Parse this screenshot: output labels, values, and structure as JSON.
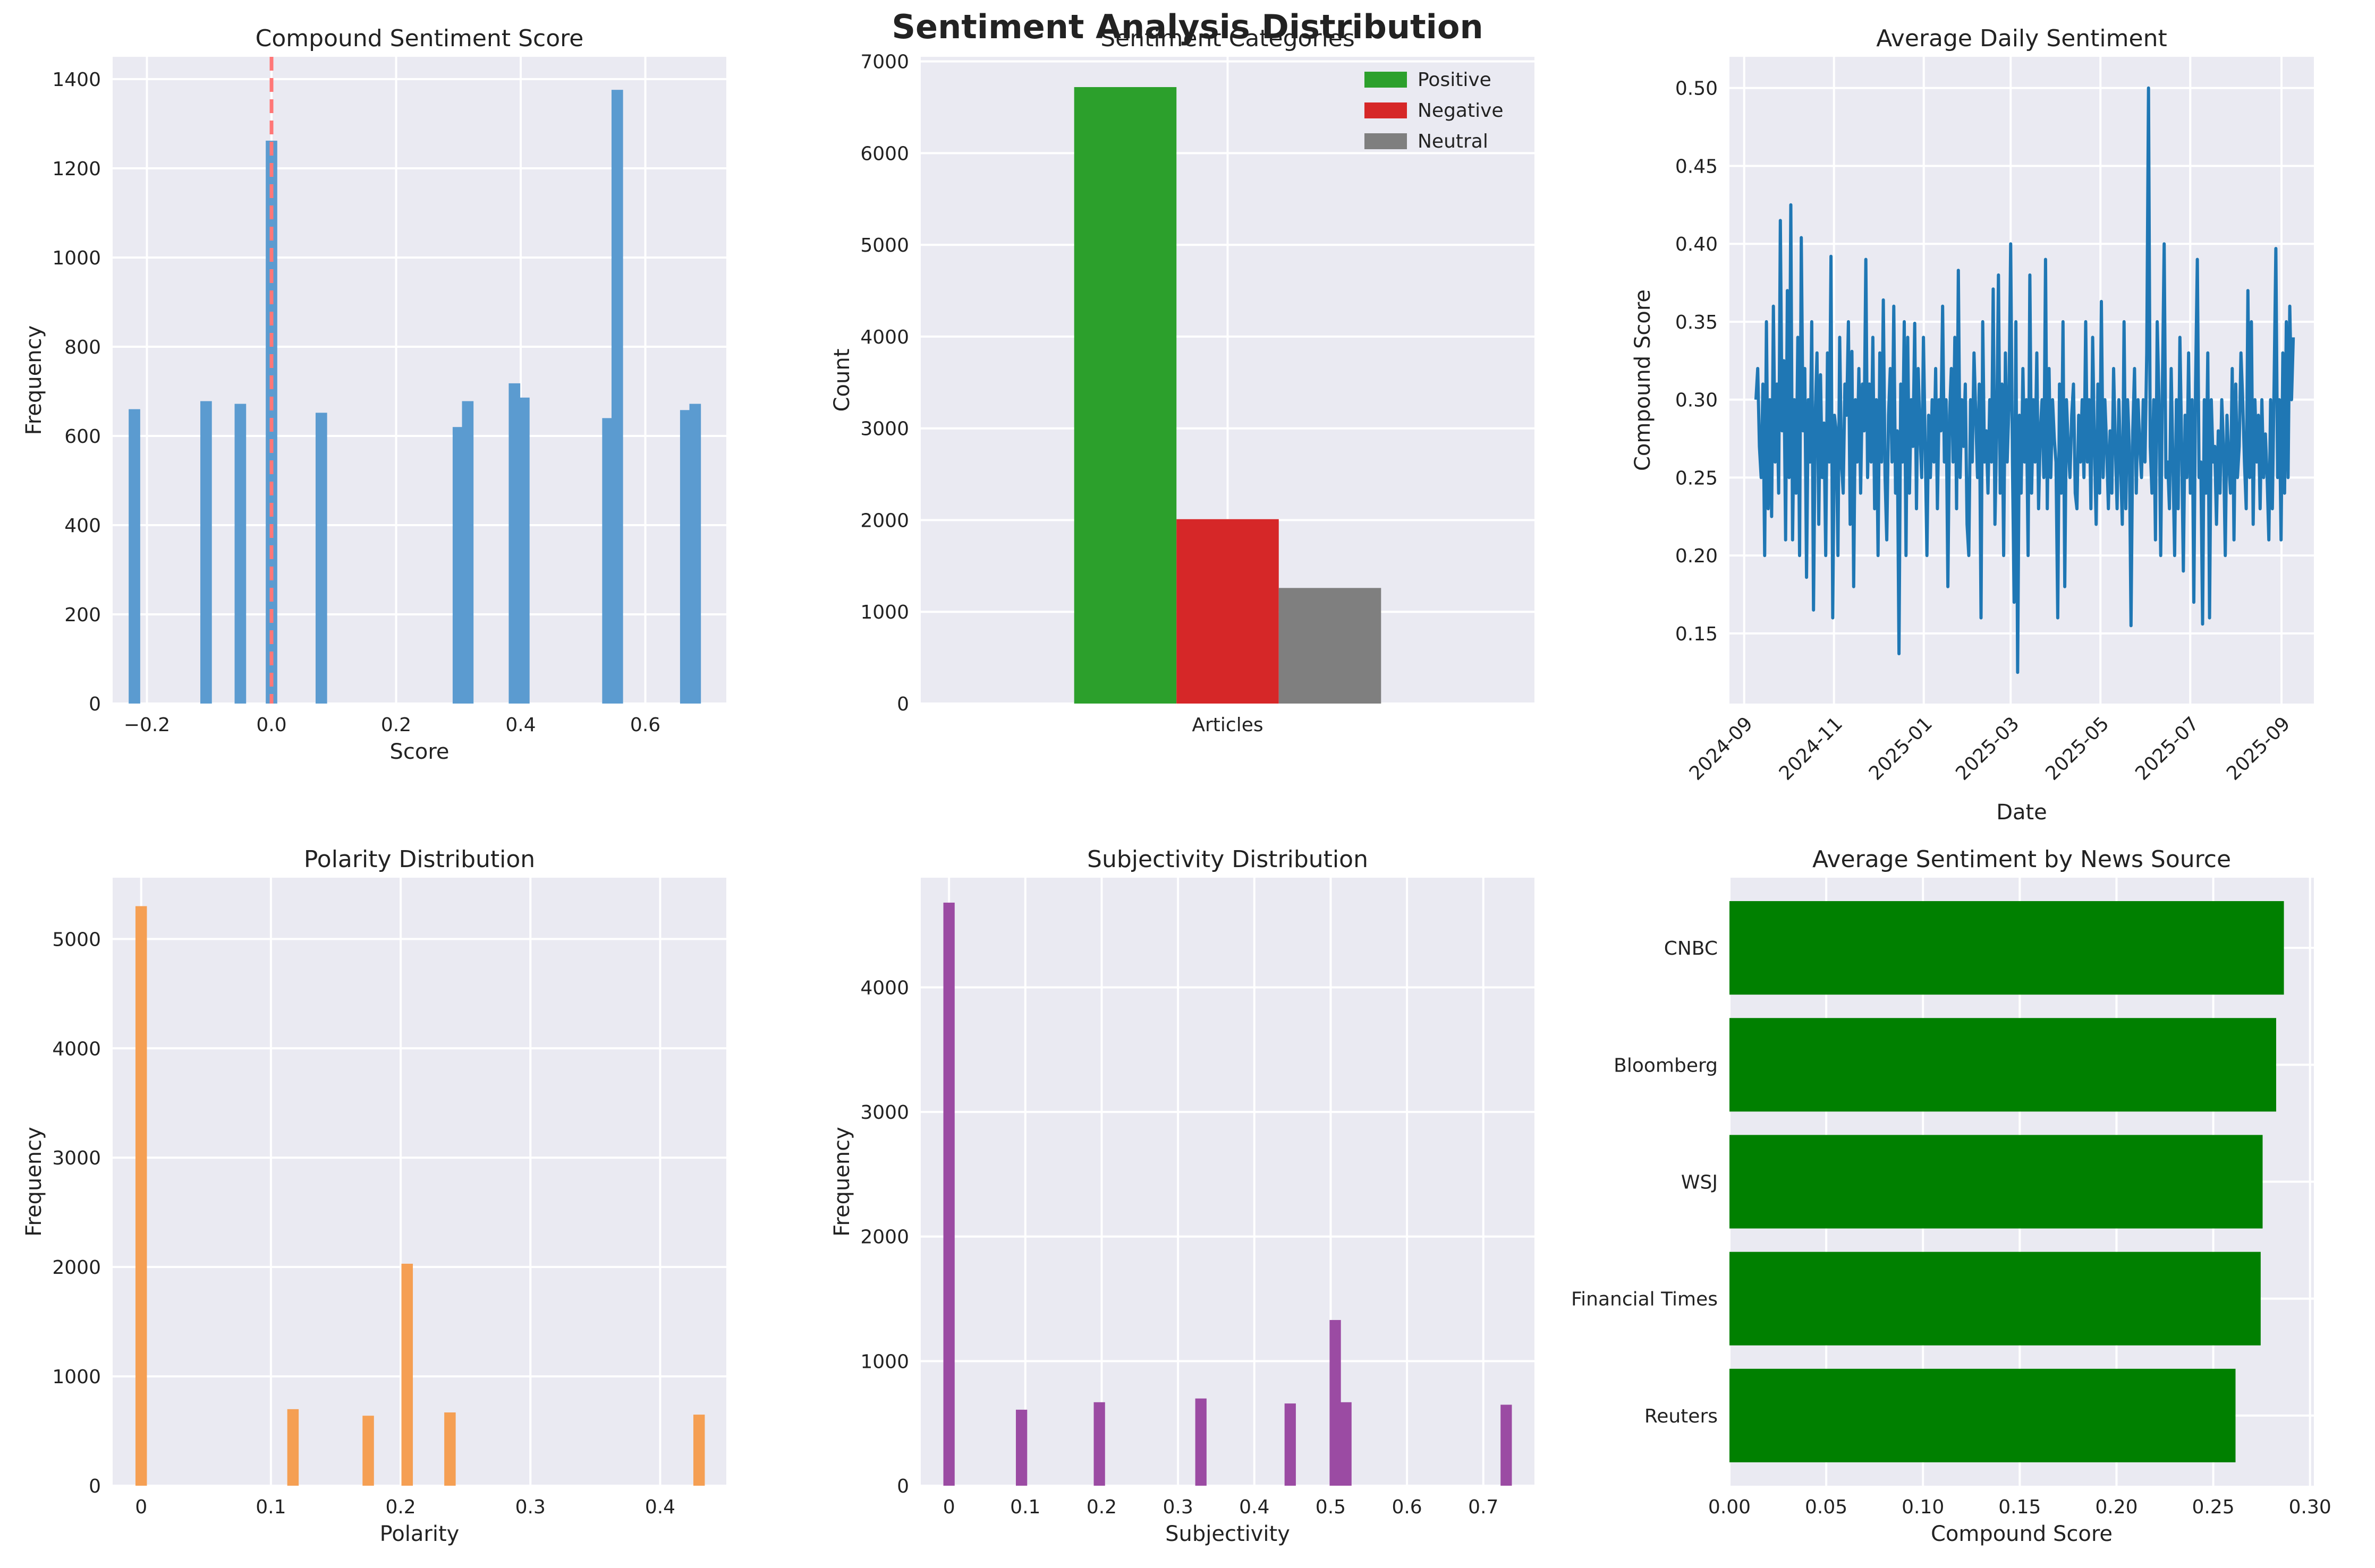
{
  "title": "Sentiment Analysis Distribution",
  "chart_data": [
    {
      "type": "bar",
      "title": "Compound Sentiment Score",
      "xlabel": "Score",
      "ylabel": "Frequency",
      "xlim": [
        -0.255,
        0.73
      ],
      "ylim": [
        0,
        1450
      ],
      "xticks": [
        -0.2,
        0.0,
        0.2,
        0.4,
        0.6
      ],
      "xtick_labels": [
        "−0.2",
        "0.0",
        "0.2",
        "0.4",
        "0.6"
      ],
      "yticks": [
        0,
        200,
        400,
        600,
        800,
        1000,
        1200,
        1400
      ],
      "bin_width": 0.0185,
      "x": [
        -0.22,
        -0.105,
        -0.05,
        0.0,
        0.08,
        0.3,
        0.315,
        0.39,
        0.405,
        0.54,
        0.555,
        0.665,
        0.68
      ],
      "values": [
        660,
        678,
        672,
        1262,
        652,
        620,
        678,
        718,
        686,
        640,
        1376,
        658,
        672
      ],
      "color": "#5b9bd0",
      "reference_line": {
        "x": 0.0,
        "color": "#ff7777",
        "style": "dashed"
      }
    },
    {
      "type": "bar",
      "title": "Sentiment Categories",
      "ylabel": "Count",
      "categories": [
        "Articles"
      ],
      "ylim": [
        0,
        7050
      ],
      "yticks": [
        0,
        1000,
        2000,
        3000,
        4000,
        5000,
        6000,
        7000
      ],
      "series": [
        {
          "name": "Positive",
          "values": [
            6720
          ],
          "color": "#2ca02c"
        },
        {
          "name": "Negative",
          "values": [
            2010
          ],
          "color": "#d62728"
        },
        {
          "name": "Neutral",
          "values": [
            1260
          ],
          "color": "#7f7f7f"
        }
      ],
      "legend": "top-right"
    },
    {
      "type": "line",
      "title": "Average Daily Sentiment",
      "xlabel": "Date",
      "ylabel": "Compound Score",
      "ylim": [
        0.105,
        0.52
      ],
      "yticks": [
        0.15,
        0.2,
        0.25,
        0.3,
        0.35,
        0.4,
        0.45,
        0.5
      ],
      "ytick_labels": [
        "0.15",
        "0.20",
        "0.25",
        "0.30",
        "0.35",
        "0.40",
        "0.45",
        "0.50"
      ],
      "xlim": [
        "2024-08-22",
        "2025-09-23"
      ],
      "xticks": [
        "2024-09-01",
        "2024-11-01",
        "2025-01-01",
        "2025-03-01",
        "2025-05-01",
        "2025-07-01",
        "2025-09-01"
      ],
      "xtick_labels": [
        "2024-09",
        "2024-11",
        "2025-01",
        "2025-03",
        "2025-05",
        "2025-07",
        "2025-09"
      ],
      "x_start": "2024-09-09",
      "x_end": "2025-09-09",
      "color": "#1f77b4",
      "values": [
        0.3,
        0.32,
        0.27,
        0.25,
        0.31,
        0.2,
        0.35,
        0.23,
        0.3,
        0.225,
        0.36,
        0.26,
        0.31,
        0.24,
        0.415,
        0.28,
        0.325,
        0.21,
        0.37,
        0.25,
        0.425,
        0.21,
        0.3,
        0.24,
        0.34,
        0.2,
        0.404,
        0.28,
        0.32,
        0.186,
        0.3,
        0.26,
        0.35,
        0.165,
        0.29,
        0.33,
        0.22,
        0.316,
        0.25,
        0.285,
        0.2,
        0.33,
        0.26,
        0.392,
        0.16,
        0.29,
        0.28,
        0.2,
        0.34,
        0.26,
        0.24,
        0.31,
        0.29,
        0.35,
        0.22,
        0.331,
        0.18,
        0.3,
        0.26,
        0.32,
        0.24,
        0.31,
        0.28,
        0.39,
        0.25,
        0.31,
        0.26,
        0.34,
        0.23,
        0.3,
        0.2,
        0.33,
        0.26,
        0.364,
        0.25,
        0.21,
        0.29,
        0.32,
        0.26,
        0.36,
        0.24,
        0.28,
        0.137,
        0.31,
        0.26,
        0.35,
        0.2,
        0.34,
        0.24,
        0.3,
        0.27,
        0.349,
        0.23,
        0.32,
        0.28,
        0.25,
        0.34,
        0.27,
        0.2,
        0.29,
        0.25,
        0.3,
        0.26,
        0.32,
        0.23,
        0.3,
        0.28,
        0.36,
        0.26,
        0.3,
        0.18,
        0.29,
        0.32,
        0.26,
        0.34,
        0.23,
        0.383,
        0.25,
        0.3,
        0.27,
        0.31,
        0.22,
        0.2,
        0.3,
        0.26,
        0.33,
        0.29,
        0.25,
        0.31,
        0.16,
        0.35,
        0.26,
        0.28,
        0.24,
        0.3,
        0.26,
        0.371,
        0.22,
        0.28,
        0.38,
        0.24,
        0.31,
        0.2,
        0.33,
        0.26,
        0.295,
        0.4,
        0.26,
        0.17,
        0.35,
        0.125,
        0.29,
        0.24,
        0.32,
        0.26,
        0.3,
        0.2,
        0.38,
        0.24,
        0.3,
        0.26,
        0.33,
        0.23,
        0.28,
        0.3,
        0.25,
        0.39,
        0.23,
        0.32,
        0.25,
        0.3,
        0.275,
        0.26,
        0.16,
        0.31,
        0.24,
        0.35,
        0.18,
        0.3,
        0.27,
        0.25,
        0.29,
        0.31,
        0.24,
        0.23,
        0.29,
        0.26,
        0.3,
        0.25,
        0.35,
        0.26,
        0.3,
        0.23,
        0.34,
        0.27,
        0.22,
        0.31,
        0.24,
        0.363,
        0.25,
        0.3,
        0.27,
        0.23,
        0.28,
        0.24,
        0.32,
        0.27,
        0.23,
        0.3,
        0.26,
        0.22,
        0.35,
        0.23,
        0.3,
        0.27,
        0.155,
        0.28,
        0.32,
        0.24,
        0.3,
        0.27,
        0.25,
        0.3,
        0.26,
        0.33,
        0.5,
        0.27,
        0.24,
        0.3,
        0.21,
        0.35,
        0.3,
        0.2,
        0.31,
        0.4,
        0.25,
        0.26,
        0.23,
        0.32,
        0.26,
        0.2,
        0.3,
        0.23,
        0.34,
        0.27,
        0.19,
        0.29,
        0.25,
        0.33,
        0.24,
        0.3,
        0.17,
        0.31,
        0.39,
        0.25,
        0.26,
        0.156,
        0.3,
        0.24,
        0.33,
        0.16,
        0.3,
        0.26,
        0.27,
        0.22,
        0.28,
        0.24,
        0.3,
        0.27,
        0.2,
        0.29,
        0.26,
        0.24,
        0.32,
        0.21,
        0.31,
        0.25,
        0.27,
        0.33,
        0.3,
        0.26,
        0.23,
        0.37,
        0.25,
        0.35,
        0.22,
        0.3,
        0.26,
        0.29,
        0.23,
        0.3,
        0.25,
        0.278,
        0.25,
        0.21,
        0.3,
        0.23,
        0.31,
        0.397,
        0.25,
        0.3,
        0.21,
        0.33,
        0.24,
        0.35,
        0.25,
        0.36,
        0.3,
        0.34
      ],
      "grid": true
    },
    {
      "type": "bar",
      "title": "Polarity Distribution",
      "xlabel": "Polarity",
      "ylabel": "Frequency",
      "xlim": [
        -0.022,
        0.451
      ],
      "ylim": [
        0,
        5560
      ],
      "xticks": [
        0.0,
        0.1,
        0.2,
        0.3,
        0.4
      ],
      "yticks": [
        0,
        1000,
        2000,
        3000,
        4000,
        5000
      ],
      "bin_width": 0.0088,
      "x": [
        0.0,
        0.117,
        0.175,
        0.205,
        0.238,
        0.43
      ],
      "values": [
        5300,
        700,
        640,
        2030,
        670,
        650
      ],
      "color": "#f59f53"
    },
    {
      "type": "bar",
      "title": "Subjectivity Distribution",
      "xlabel": "Subjectivity",
      "ylabel": "Frequency",
      "xlim": [
        -0.037,
        0.767
      ],
      "ylim": [
        0,
        4880
      ],
      "xticks": [
        0.0,
        0.1,
        0.2,
        0.3,
        0.4,
        0.5,
        0.6,
        0.7
      ],
      "yticks": [
        0,
        1000,
        2000,
        3000,
        4000
      ],
      "bin_width": 0.0148,
      "x": [
        0.0,
        0.095,
        0.197,
        0.33,
        0.447,
        0.506,
        0.52,
        0.73
      ],
      "values": [
        4680,
        610,
        670,
        700,
        660,
        1330,
        670,
        650
      ],
      "color": "#9b4ba3"
    },
    {
      "type": "barh",
      "title": "Average Sentiment by News Source",
      "xlabel": "Compound Score",
      "xlim": [
        0,
        0.302
      ],
      "xticks": [
        0.0,
        0.05,
        0.1,
        0.15,
        0.2,
        0.25,
        0.3
      ],
      "xtick_labels": [
        "0.00",
        "0.05",
        "0.10",
        "0.15",
        "0.20",
        "0.25",
        "0.30"
      ],
      "categories": [
        "CNBC",
        "Bloomberg",
        "WSJ",
        "Financial Times",
        "Reuters"
      ],
      "values": [
        0.2865,
        0.2825,
        0.2755,
        0.2745,
        0.2615
      ],
      "color": "#008000"
    }
  ]
}
